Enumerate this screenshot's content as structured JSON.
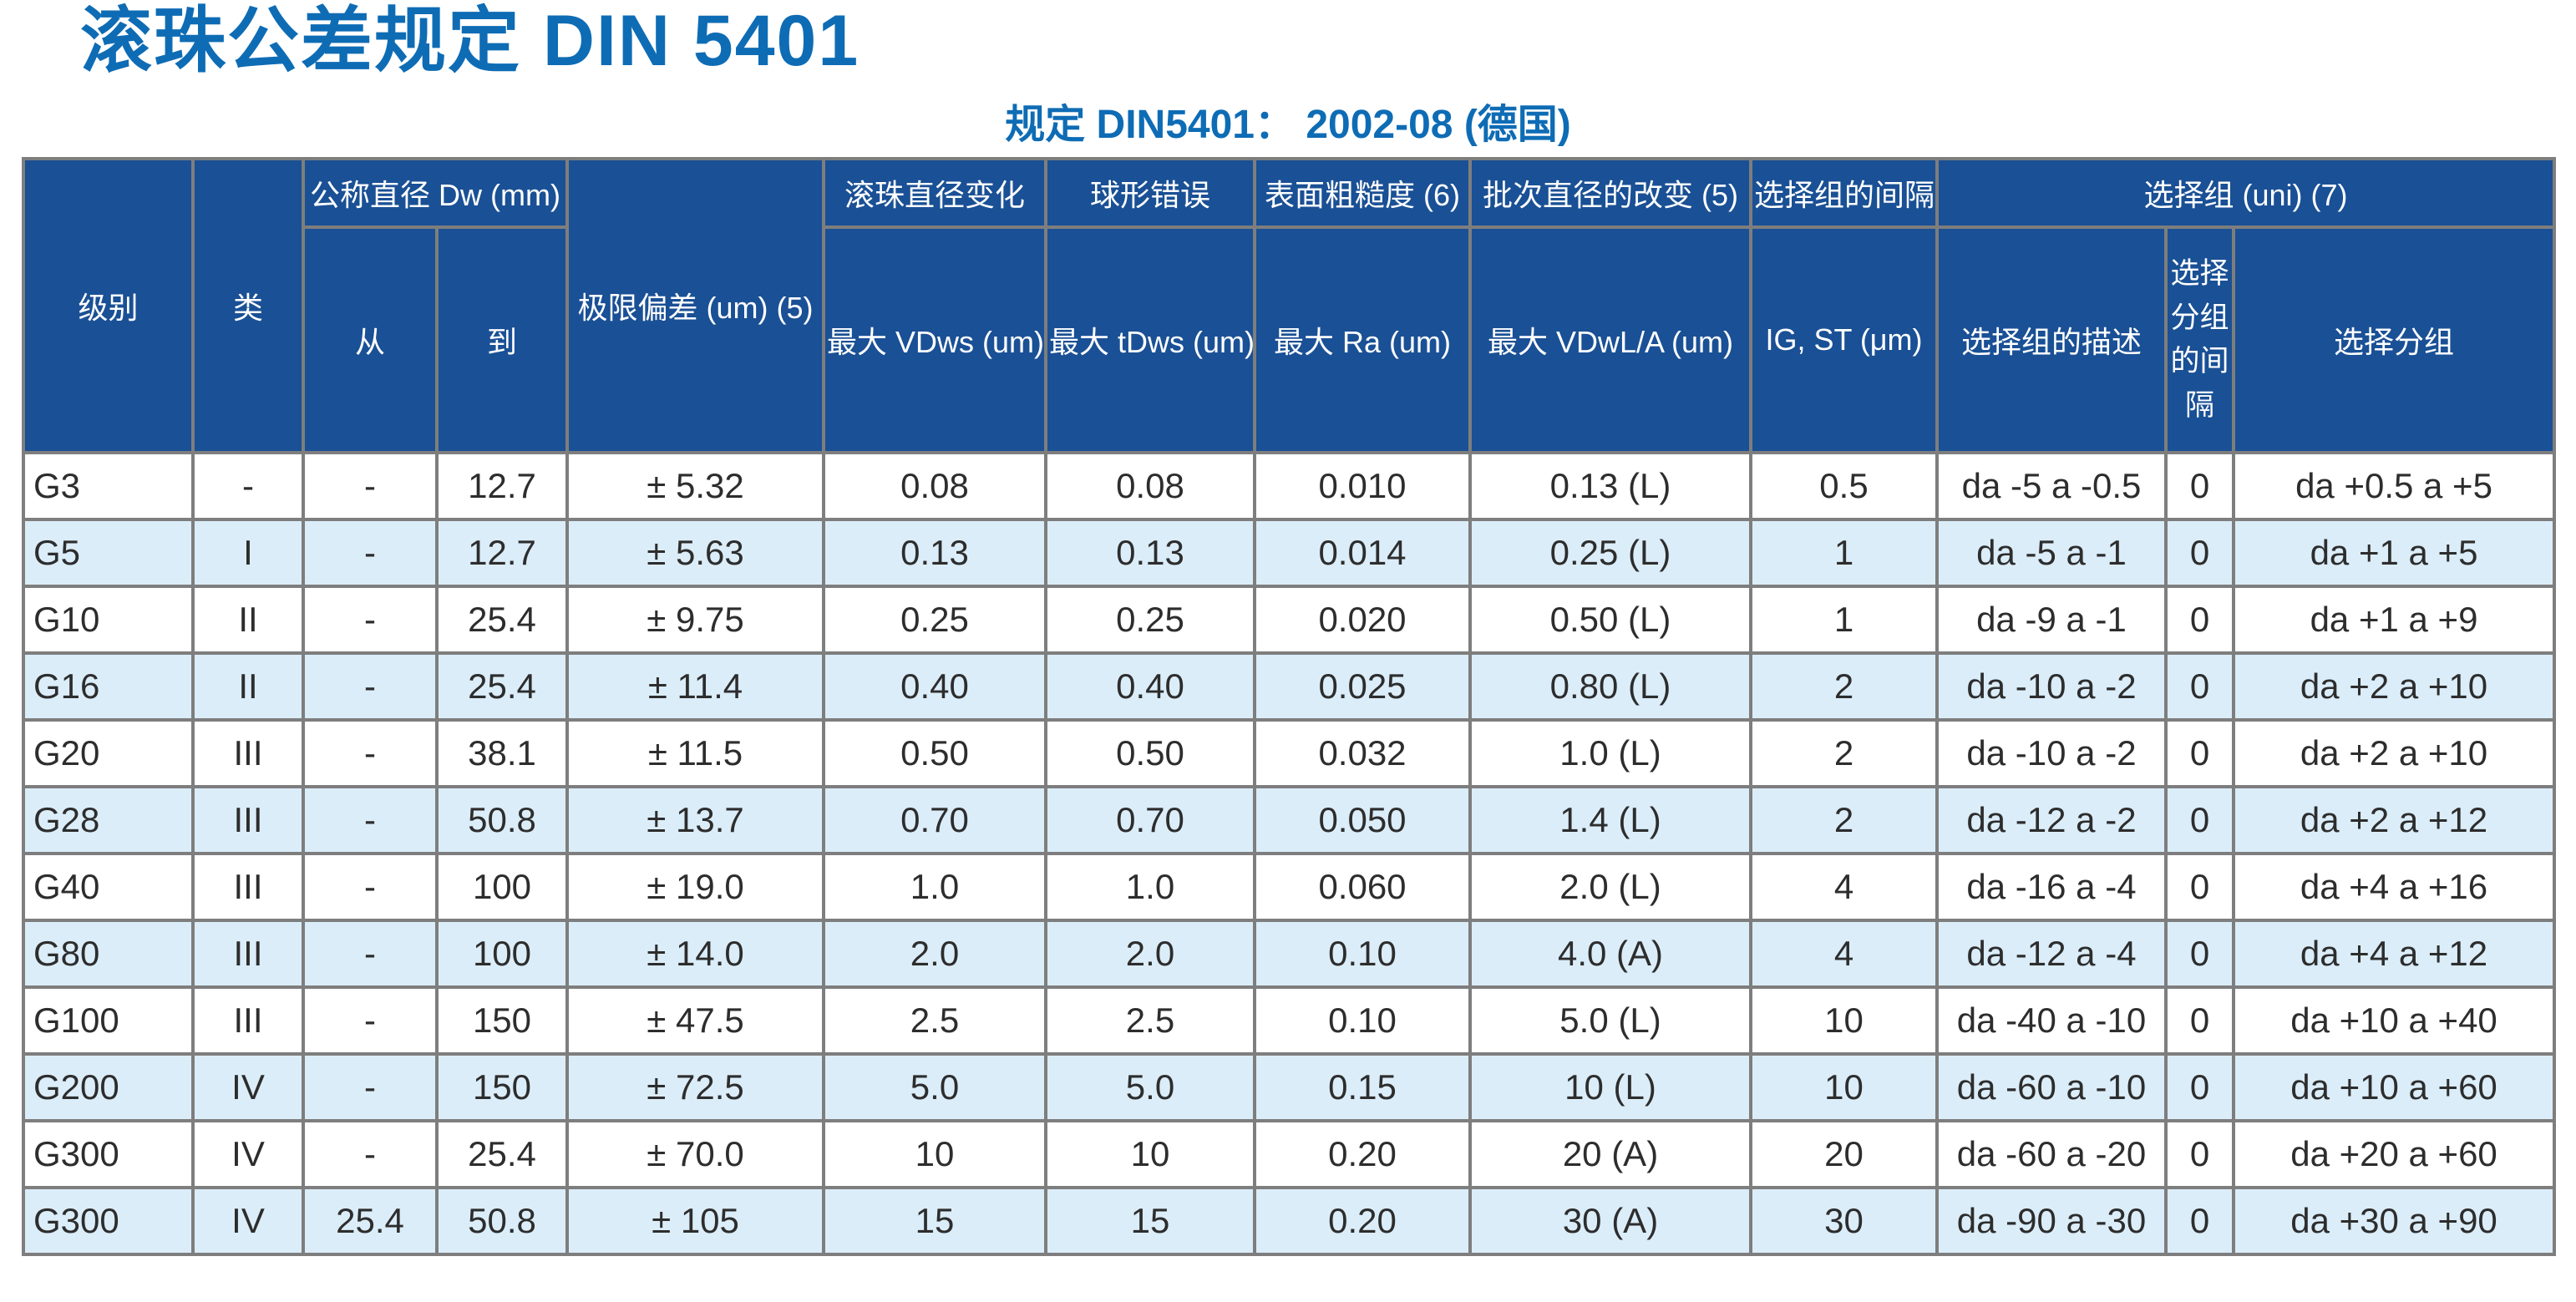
{
  "page": {
    "title": "滚珠公差规定 DIN 5401",
    "subtitle": "规定 DIN5401： 2002-08 (德国)"
  },
  "colors": {
    "accent_blue": "#0E6CB5",
    "header_background": "#1A5095",
    "alternate_row": "#DBEDF9",
    "grid_border": "#7E7E7E",
    "body_text": "#2D2D2D"
  },
  "table": {
    "header": {
      "level": "级别",
      "class": "类",
      "nominal_diameter": "公称直径 Dw (mm)",
      "from": "从",
      "to": "到",
      "limit_deviation": "极限偏差 (um) (5)",
      "ball_diameter_variation": "滚珠直径变化",
      "ball_diameter_variation_sub": "最大 VDws (um)",
      "spherical_error": "球形错误",
      "spherical_error_sub": "最大 tDws (um)",
      "surface_roughness": "表面粗糙度 (6)",
      "surface_roughness_sub": "最大 Ra (um)",
      "lot_diameter_variation": "批次直径的改变 (5)",
      "lot_diameter_variation_sub": "最大 VDwL/A (um)",
      "gauge_interval": "选择组的间隔",
      "gauge_interval_sub": "IG, ST (μm)",
      "selection_group": "选择组 (uni) (7)",
      "selection_group_desc": "选择组的描述",
      "selection_subgroup_interval": "选择分组的间隔",
      "selection_subgroup": "选择分组"
    },
    "column_keys": [
      "level",
      "class",
      "from",
      "to",
      "limit-deviation",
      "max-vdws",
      "max-tdws",
      "max-ra",
      "max-vdwl-a",
      "ig-st",
      "selection-group-desc",
      "selection-subgroup-interval",
      "selection-subgroup"
    ],
    "rows": [
      [
        "G3",
        "-",
        "-",
        "12.7",
        "± 5.32",
        "0.08",
        "0.08",
        "0.010",
        "0.13 (L)",
        "0.5",
        "da -5 a -0.5",
        "0",
        "da +0.5 a +5"
      ],
      [
        "G5",
        "I",
        "-",
        "12.7",
        "± 5.63",
        "0.13",
        "0.13",
        "0.014",
        "0.25 (L)",
        "1",
        "da -5 a -1",
        "0",
        "da +1 a +5"
      ],
      [
        "G10",
        "II",
        "-",
        "25.4",
        "± 9.75",
        "0.25",
        "0.25",
        "0.020",
        "0.50 (L)",
        "1",
        "da -9 a -1",
        "0",
        "da +1 a +9"
      ],
      [
        "G16",
        "II",
        "-",
        "25.4",
        "± 11.4",
        "0.40",
        "0.40",
        "0.025",
        "0.80 (L)",
        "2",
        "da -10 a -2",
        "0",
        "da +2 a +10"
      ],
      [
        "G20",
        "III",
        "-",
        "38.1",
        "± 11.5",
        "0.50",
        "0.50",
        "0.032",
        "1.0 (L)",
        "2",
        "da -10 a -2",
        "0",
        "da +2 a +10"
      ],
      [
        "G28",
        "III",
        "-",
        "50.8",
        "± 13.7",
        "0.70",
        "0.70",
        "0.050",
        "1.4 (L)",
        "2",
        "da -12 a -2",
        "0",
        "da +2 a +12"
      ],
      [
        "G40",
        "III",
        "-",
        "100",
        "± 19.0",
        "1.0",
        "1.0",
        "0.060",
        "2.0 (L)",
        "4",
        "da -16 a -4",
        "0",
        "da +4 a +16"
      ],
      [
        "G80",
        "III",
        "-",
        "100",
        "± 14.0",
        "2.0",
        "2.0",
        "0.10",
        "4.0 (A)",
        "4",
        "da -12 a -4",
        "0",
        "da +4 a +12"
      ],
      [
        "G100",
        "III",
        "-",
        "150",
        "± 47.5",
        "2.5",
        "2.5",
        "0.10",
        "5.0 (L)",
        "10",
        "da -40 a -10",
        "0",
        "da +10 a +40"
      ],
      [
        "G200",
        "IV",
        "-",
        "150",
        "± 72.5",
        "5.0",
        "5.0",
        "0.15",
        "10 (L)",
        "10",
        "da -60 a -10",
        "0",
        "da +10 a +60"
      ],
      [
        "G300",
        "IV",
        "-",
        "25.4",
        "± 70.0",
        "10",
        "10",
        "0.20",
        "20 (A)",
        "20",
        "da -60 a -20",
        "0",
        "da +20 a +60"
      ],
      [
        "G300",
        "IV",
        "25.4",
        "50.8",
        "± 105",
        "15",
        "15",
        "0.20",
        "30 (A)",
        "30",
        "da -90 a -30",
        "0",
        "da +30 a +90"
      ]
    ]
  }
}
